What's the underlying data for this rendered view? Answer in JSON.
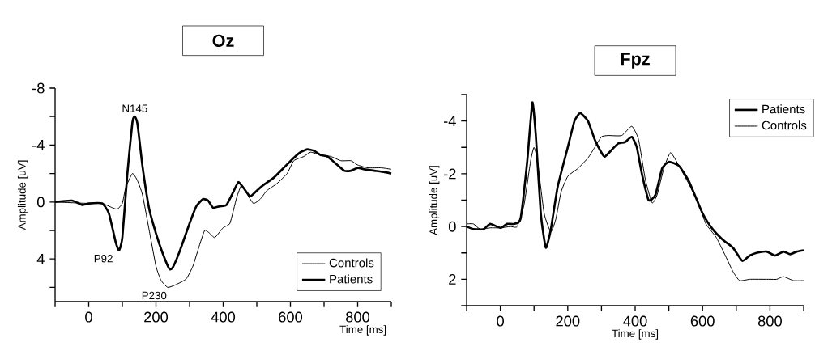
{
  "chart_data": [
    {
      "type": "line",
      "title": "Oz",
      "xlabel": "Time [ms]",
      "ylabel": "Amplitude [uV]",
      "xlim": [
        -100,
        900
      ],
      "ylim": [
        7,
        -8
      ],
      "xticks": [
        0,
        200,
        400,
        600,
        800,
        {
          "value": -100,
          "label": null
        },
        {
          "value": 100,
          "label": null
        },
        {
          "value": 300,
          "label": null
        },
        {
          "value": 500,
          "label": null
        },
        {
          "value": 700,
          "label": null
        },
        {
          "value": 900,
          "label": null
        }
      ],
      "yticks": [
        -8,
        -4,
        0,
        4,
        {
          "value": -6,
          "label": null
        },
        {
          "value": -2,
          "label": null
        },
        {
          "value": 2,
          "label": null
        },
        {
          "value": 6,
          "label": null
        }
      ],
      "legend": "bottom right",
      "marker": "none",
      "annotations": [
        {
          "text": "N145",
          "x": 137,
          "y": -6
        },
        {
          "text": "P92",
          "x": 85,
          "y": 3.4
        },
        {
          "text": "P230",
          "x": 229,
          "y": 6
        }
      ],
      "series": [
        {
          "name": "Controls",
          "color": "#000000",
          "x": [
            -100,
            0,
            40,
            70,
            85,
            100,
            110,
            130,
            145,
            160,
            180,
            200,
            215,
            235,
            260,
            290,
            310,
            330,
            345,
            360,
            375,
            400,
            420,
            440,
            455,
            470,
            490,
            510,
            530,
            560,
            590,
            610,
            640,
            660,
            690,
            720,
            750,
            780,
            800,
            830,
            870,
            900
          ],
          "values": [
            0,
            0.1,
            0.1,
            0.4,
            0.5,
            0.1,
            -1.0,
            -2.0,
            -1.5,
            -0.5,
            2.0,
            4.5,
            5.5,
            6.0,
            5.8,
            5.4,
            4.5,
            3.0,
            2.0,
            2.2,
            2.5,
            1.8,
            1.5,
            -0.3,
            -1.2,
            -0.6,
            0.1,
            -0.2,
            -0.8,
            -1.3,
            -2.0,
            -2.9,
            -3.2,
            -3.5,
            -3.3,
            -3.2,
            -2.9,
            -2.9,
            -2.6,
            -2.4,
            -2.4,
            -2.3
          ]
        },
        {
          "name": "Patients",
          "color": "#000000",
          "x": [
            -100,
            -50,
            -20,
            0,
            40,
            60,
            80,
            90,
            100,
            115,
            130,
            137,
            145,
            160,
            180,
            200,
            220,
            240,
            250,
            270,
            300,
            320,
            340,
            355,
            370,
            390,
            410,
            430,
            445,
            460,
            480,
            500,
            520,
            550,
            580,
            610,
            630,
            650,
            670,
            690,
            710,
            730,
            760,
            780,
            800,
            820,
            850,
            880,
            900
          ],
          "values": [
            0,
            -0.1,
            0.2,
            0.1,
            0.1,
            0.8,
            2.8,
            3.4,
            2.5,
            -2,
            -5.6,
            -6,
            -5.5,
            -2.5,
            0.5,
            2.2,
            3.6,
            4.7,
            4.6,
            3.5,
            1.5,
            0.3,
            -0.2,
            -0.1,
            0.4,
            0.3,
            0.2,
            -0.7,
            -1.4,
            -1.0,
            -0.4,
            -0.8,
            -1.2,
            -1.7,
            -2.4,
            -3.1,
            -3.5,
            -3.7,
            -3.6,
            -3.3,
            -3.2,
            -2.8,
            -2.2,
            -2.2,
            -2.4,
            -2.3,
            -2.2,
            -2.1,
            -2.0
          ]
        }
      ]
    },
    {
      "type": "line",
      "title": "Fpz",
      "xlabel": "Time [ms]",
      "ylabel": "Amplitude [uV]",
      "xlim": [
        -100,
        900
      ],
      "ylim": [
        3,
        -5
      ],
      "xticks": [
        0,
        200,
        400,
        600,
        800,
        {
          "value": -100,
          "label": null
        },
        {
          "value": 100,
          "label": null
        },
        {
          "value": 300,
          "label": null
        },
        {
          "value": 500,
          "label": null
        },
        {
          "value": 700,
          "label": null
        },
        {
          "value": 900,
          "label": null
        }
      ],
      "yticks": [
        -4,
        -2,
        0,
        2,
        {
          "value": -5,
          "label": null
        },
        {
          "value": -3,
          "label": null
        },
        {
          "value": -1,
          "label": null
        },
        {
          "value": 1,
          "label": null
        },
        {
          "value": 3,
          "label": null
        }
      ],
      "legend": "top right",
      "marker": "none",
      "series": [
        {
          "name": "Patients",
          "color": "#000000",
          "x": [
            -100,
            -80,
            -50,
            -30,
            0,
            20,
            40,
            60,
            80,
            95,
            105,
            120,
            135,
            150,
            170,
            200,
            220,
            237,
            260,
            280,
            300,
            310,
            330,
            350,
            370,
            390,
            405,
            420,
            440,
            460,
            480,
            500,
            530,
            560,
            600,
            630,
            660,
            690,
            718,
            740,
            760,
            790,
            815,
            840,
            860,
            880,
            900
          ],
          "values": [
            0,
            0.1,
            0.1,
            -0.1,
            0.05,
            -0.1,
            -0.1,
            -0.3,
            -2.5,
            -4.7,
            -3.5,
            -0.5,
            0.8,
            0.1,
            -1.5,
            -3.0,
            -4.0,
            -4.3,
            -4.0,
            -3.3,
            -2.8,
            -2.65,
            -2.9,
            -3.15,
            -3.2,
            -3.4,
            -3.0,
            -2.0,
            -1.0,
            -1.2,
            -2.2,
            -2.45,
            -2.3,
            -1.7,
            -0.5,
            0.1,
            0.5,
            0.8,
            1.3,
            1.1,
            1.0,
            0.95,
            1.1,
            0.95,
            1.05,
            0.95,
            0.9
          ]
        },
        {
          "name": "Controls",
          "color": "#000000",
          "x": [
            -100,
            -80,
            -60,
            -30,
            0,
            30,
            50,
            70,
            90,
            100,
            110,
            130,
            150,
            165,
            180,
            200,
            230,
            260,
            280,
            300,
            320,
            360,
            390,
            410,
            430,
            450,
            465,
            485,
            505,
            530,
            560,
            590,
            610,
            640,
            660,
            690,
            710,
            740,
            780,
            800,
            820,
            840,
            870,
            900
          ],
          "values": [
            -0.1,
            -0.1,
            0.1,
            0.05,
            0.05,
            0,
            0,
            -0.8,
            -2.5,
            -3.0,
            -2.5,
            -0.5,
            0.2,
            -0.3,
            -1.3,
            -1.9,
            -2.2,
            -2.6,
            -3.0,
            -3.4,
            -3.45,
            -3.45,
            -3.8,
            -3.3,
            -1.8,
            -0.9,
            -1.2,
            -2.2,
            -2.8,
            -2.3,
            -1.6,
            -0.8,
            -0.1,
            0.4,
            0.9,
            1.7,
            2.05,
            2.0,
            2.0,
            2.0,
            2.0,
            1.9,
            2.05,
            2.05
          ]
        }
      ]
    }
  ]
}
